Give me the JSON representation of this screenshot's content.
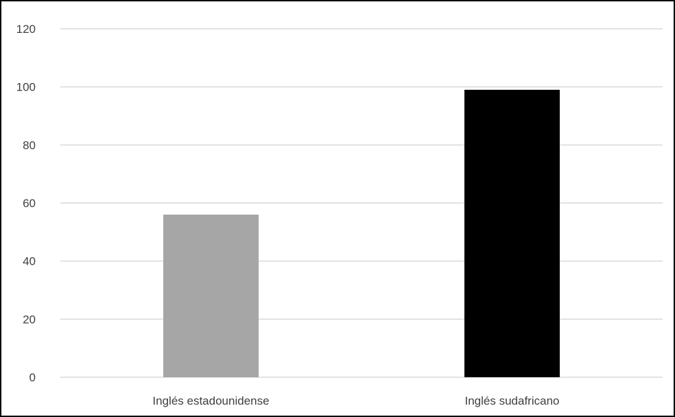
{
  "chart_data": {
    "type": "bar",
    "categories": [
      "Inglés estadounidense",
      "Inglés sudafricano"
    ],
    "values": [
      56,
      99
    ],
    "bar_colors": [
      "#a6a6a6",
      "#000000"
    ],
    "title": "",
    "xlabel": "",
    "ylabel": "",
    "ylim": [
      0,
      120
    ],
    "yticks": [
      0,
      20,
      40,
      60,
      80,
      100,
      120
    ],
    "grid": true,
    "legend": "none"
  },
  "colors": {
    "gridline": "#d9d9d9",
    "axis_text": "#404040"
  }
}
